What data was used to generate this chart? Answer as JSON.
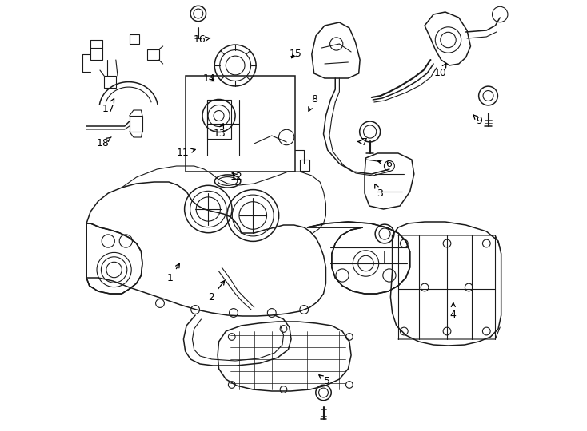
{
  "bg_color": "#ffffff",
  "line_color": "#1a1a1a",
  "figsize": [
    7.34,
    5.4
  ],
  "dpi": 100,
  "labels": {
    "1": [
      0.215,
      0.355,
      0.24,
      0.395
    ],
    "2": [
      0.31,
      0.31,
      0.345,
      0.355
    ],
    "3": [
      0.7,
      0.55,
      0.685,
      0.58
    ],
    "4": [
      0.87,
      0.27,
      0.87,
      0.305
    ],
    "5": [
      0.578,
      0.115,
      0.553,
      0.135
    ],
    "6": [
      0.72,
      0.62,
      0.688,
      0.628
    ],
    "7": [
      0.665,
      0.67,
      0.642,
      0.672
    ],
    "8": [
      0.548,
      0.77,
      0.532,
      0.735
    ],
    "9": [
      0.93,
      0.72,
      0.915,
      0.735
    ],
    "10": [
      0.84,
      0.83,
      0.855,
      0.855
    ],
    "11": [
      0.243,
      0.645,
      0.28,
      0.655
    ],
    "12": [
      0.368,
      0.59,
      0.353,
      0.603
    ],
    "13": [
      0.328,
      0.69,
      0.34,
      0.72
    ],
    "14": [
      0.305,
      0.818,
      0.323,
      0.808
    ],
    "15": [
      0.505,
      0.875,
      0.49,
      0.86
    ],
    "16": [
      0.283,
      0.908,
      0.308,
      0.912
    ],
    "17": [
      0.072,
      0.748,
      0.088,
      0.778
    ],
    "18": [
      0.058,
      0.668,
      0.078,
      0.682
    ]
  }
}
